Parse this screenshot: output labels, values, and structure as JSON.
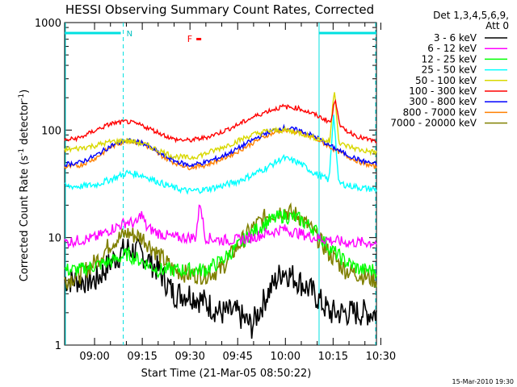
{
  "chart_data": {
    "type": "line",
    "title": "HESSI Observing Summary Count Rates, Corrected",
    "xlabel": "Start Time (21-Mar-05 08:50:22)",
    "ylabel_main": "Corrected Count Rate (s",
    "ylabel_sup": "-1",
    "ylabel_mid": " detector",
    "ylabel_sup2": "-1",
    "ylabel_end": ")",
    "yscale": "log",
    "ylim": [
      1,
      1000
    ],
    "xlim": [
      0,
      100
    ],
    "y_tick_labels": [
      {
        "label": "1",
        "value": 1
      },
      {
        "label": "10",
        "value": 10
      },
      {
        "label": "100",
        "value": 100
      },
      {
        "label": "1000",
        "value": 1000
      }
    ],
    "x_tick_labels": [
      {
        "label": "09:00",
        "value": 9.6
      },
      {
        "label": "09:15",
        "value": 24.9
      },
      {
        "label": "09:30",
        "value": 40.2
      },
      {
        "label": "09:45",
        "value": 55.5
      },
      {
        "label": "10:00",
        "value": 70.8
      },
      {
        "label": "10:15",
        "value": 86.1
      },
      {
        "label": "10:30",
        "value": 101.4
      }
    ],
    "legend_header": [
      "Det 1,3,4,5,6,9,",
      "Att 0"
    ],
    "legend_position": "right",
    "series": [
      {
        "name": "3 - 6 keV",
        "color": "#000000",
        "key": "s3_6"
      },
      {
        "name": "6 - 12 keV",
        "color": "#ff00ff",
        "key": "s6_12"
      },
      {
        "name": "12 - 25 keV",
        "color": "#00ff00",
        "key": "s12_25"
      },
      {
        "name": "25 - 50 keV",
        "color": "#00ffff",
        "key": "s25_50"
      },
      {
        "name": "50 - 100 keV",
        "color": "#d8d800",
        "key": "s50_100"
      },
      {
        "name": "100 - 300 keV",
        "color": "#ff0000",
        "key": "s100_300"
      },
      {
        "name": "300 - 800 keV",
        "color": "#0000ff",
        "key": "s300_800"
      },
      {
        "name": "800 - 7000 keV",
        "color": "#ff8000",
        "key": "s800_7000"
      },
      {
        "name": "7000 - 20000 keV",
        "color": "#808000",
        "key": "s7000_20000"
      }
    ],
    "x": [
      0,
      5,
      10,
      15,
      20,
      25,
      30,
      35,
      40,
      45,
      50,
      55,
      60,
      65,
      70,
      75,
      80,
      85,
      90,
      95,
      100
    ],
    "values": {
      "s100_300": [
        80,
        85,
        100,
        115,
        120,
        110,
        95,
        82,
        80,
        85,
        95,
        110,
        130,
        150,
        165,
        160,
        140,
        120,
        100,
        85,
        78
      ],
      "s50_100": [
        65,
        68,
        72,
        78,
        80,
        75,
        65,
        57,
        55,
        60,
        68,
        78,
        90,
        98,
        100,
        95,
        85,
        78,
        72,
        65,
        62
      ],
      "s800_7000": [
        45,
        47,
        55,
        70,
        80,
        75,
        60,
        50,
        45,
        47,
        53,
        62,
        75,
        90,
        100,
        95,
        85,
        70,
        58,
        50,
        45
      ],
      "s300_800": [
        48,
        50,
        58,
        72,
        80,
        76,
        62,
        52,
        47,
        50,
        56,
        66,
        80,
        95,
        105,
        100,
        88,
        72,
        60,
        52,
        48
      ],
      "s25_50": [
        30,
        30,
        31,
        35,
        40,
        38,
        33,
        29,
        27,
        28,
        30,
        33,
        38,
        45,
        55,
        50,
        40,
        34,
        31,
        29,
        28
      ],
      "s6_12": [
        9,
        9.5,
        10,
        12,
        14,
        13,
        11,
        10,
        10,
        10,
        9.5,
        9.5,
        10,
        11,
        12,
        11,
        10,
        9.5,
        9,
        9,
        9
      ],
      "s12_25": [
        5,
        5,
        5.5,
        6,
        7,
        6,
        5,
        5,
        5,
        5,
        6,
        8,
        11,
        14,
        16,
        15,
        12,
        8,
        6,
        5,
        5
      ],
      "s7000_20000": [
        4,
        4.5,
        6,
        9,
        11,
        10,
        7,
        5,
        4.5,
        4.5,
        5,
        8,
        12,
        16,
        18,
        16,
        11,
        7,
        5,
        4.5,
        4
      ],
      "s3_6": [
        4,
        4,
        4,
        6,
        8,
        7,
        5,
        3,
        3,
        2.5,
        2,
        2,
        1.5,
        3,
        5,
        4,
        3,
        2,
        2,
        2,
        2
      ]
    },
    "spikes": [
      {
        "series": "s50_100",
        "x": 86.5,
        "value": 250
      },
      {
        "series": "s100_300",
        "x": 86.8,
        "value": 200
      },
      {
        "series": "s25_50",
        "x": 86.3,
        "value": 150
      },
      {
        "series": "s6_12",
        "x": 24.5,
        "value": 17
      },
      {
        "series": "s6_12",
        "x": 43.5,
        "value": 22
      }
    ],
    "attenuator_label": "N",
    "attenuator_x_start": 0,
    "attenuator_x_end": 18.8,
    "attenuator_x2_start": 81.6,
    "attenuator_x2_end": 100,
    "flare_label": "F",
    "flare_x": 42,
    "vertical_markers_solid": [
      0,
      81.6
    ],
    "vertical_markers_dashed": [
      18.8,
      100
    ],
    "footer_date": "15-Mar-2010 19:30"
  }
}
